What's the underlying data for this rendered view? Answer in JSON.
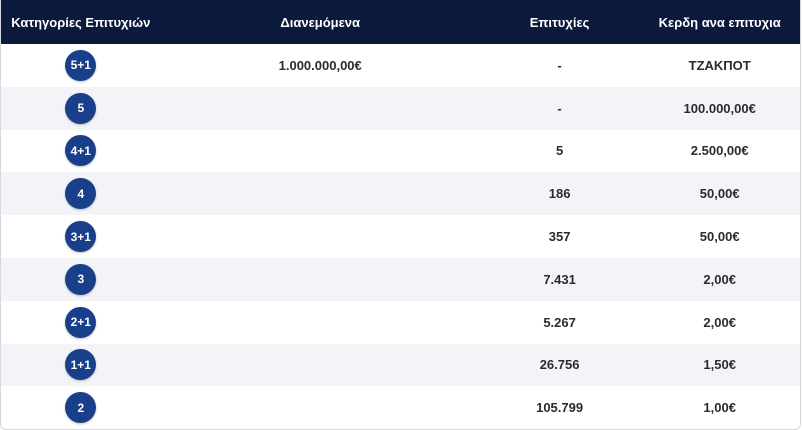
{
  "header": {
    "categories": "Κατηγορίες Επιτυχιών",
    "distributed": "Διανεμόμενα",
    "winners": "Επιτυχίες",
    "prize_per_winner": "Κερδη ανα επιτυχια"
  },
  "rows": [
    {
      "category": "5+1",
      "distributed": "1.000.000,00€",
      "winners": "-",
      "prize": "ΤΖΑΚΠΟΤ"
    },
    {
      "category": "5",
      "distributed": "",
      "winners": "-",
      "prize": "100.000,00€"
    },
    {
      "category": "4+1",
      "distributed": "",
      "winners": "5",
      "prize": "2.500,00€"
    },
    {
      "category": "4",
      "distributed": "",
      "winners": "186",
      "prize": "50,00€"
    },
    {
      "category": "3+1",
      "distributed": "",
      "winners": "357",
      "prize": "50,00€"
    },
    {
      "category": "3",
      "distributed": "",
      "winners": "7.431",
      "prize": "2,00€"
    },
    {
      "category": "2+1",
      "distributed": "",
      "winners": "5.267",
      "prize": "2,00€"
    },
    {
      "category": "1+1",
      "distributed": "",
      "winners": "26.756",
      "prize": "1,50€"
    },
    {
      "category": "2",
      "distributed": "",
      "winners": "105.799",
      "prize": "1,00€"
    }
  ],
  "colors": {
    "header_bg": "#0b1a3c",
    "badge_bg": "#1a3f8a",
    "alt_row_bg": "#f3f4f7"
  }
}
